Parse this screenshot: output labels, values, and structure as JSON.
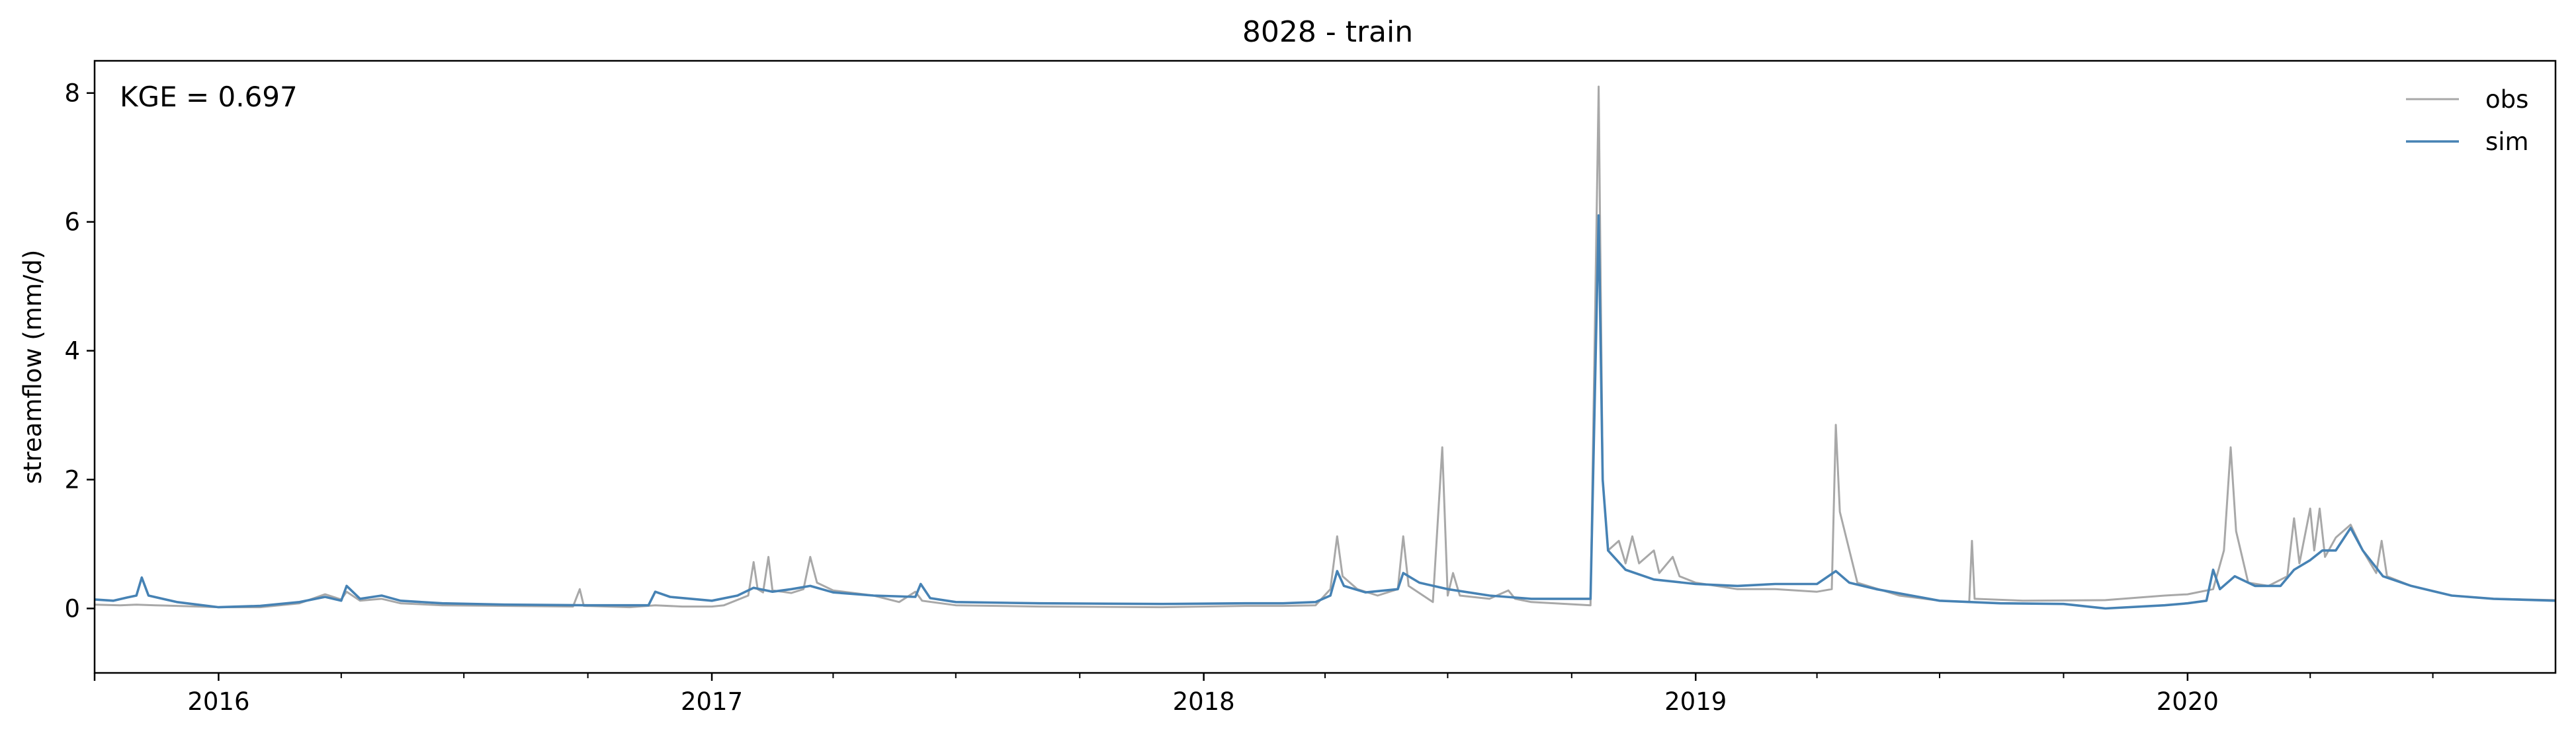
{
  "chart_data": {
    "type": "line",
    "title": "8028 - train",
    "xlabel": "",
    "ylabel": "streamflow (mm/d)",
    "annotation": "KGE = 0.697",
    "x_range": [
      "2015-10-01",
      "2020-09-30"
    ],
    "ylim": [
      -1.0,
      8.5
    ],
    "x_tick_labels": [
      {
        "date": "2016-01-01",
        "label": "2016"
      },
      {
        "date": "2017-01-01",
        "label": "2017"
      },
      {
        "date": "2018-01-01",
        "label": "2018"
      },
      {
        "date": "2019-01-01",
        "label": "2019"
      },
      {
        "date": "2020-01-01",
        "label": "2020"
      }
    ],
    "y_ticks": [
      0,
      2,
      4,
      6,
      8
    ],
    "grid": false,
    "legend_position": "top-right",
    "series": [
      {
        "name": "obs",
        "color": "#a8a8a8",
        "points": [
          [
            "2015-10-01",
            0.06
          ],
          [
            "2015-10-20",
            0.05
          ],
          [
            "2015-11-01",
            0.06
          ],
          [
            "2015-11-15",
            0.05
          ],
          [
            "2015-12-01",
            0.04
          ],
          [
            "2016-01-01",
            0.02
          ],
          [
            "2016-02-01",
            0.02
          ],
          [
            "2016-03-01",
            0.08
          ],
          [
            "2016-03-20",
            0.22
          ],
          [
            "2016-04-01",
            0.14
          ],
          [
            "2016-04-05",
            0.26
          ],
          [
            "2016-04-15",
            0.12
          ],
          [
            "2016-05-01",
            0.15
          ],
          [
            "2016-05-15",
            0.08
          ],
          [
            "2016-06-15",
            0.05
          ],
          [
            "2016-08-01",
            0.04
          ],
          [
            "2016-09-20",
            0.03
          ],
          [
            "2016-09-25",
            0.3
          ],
          [
            "2016-09-28",
            0.04
          ],
          [
            "2016-11-01",
            0.02
          ],
          [
            "2016-11-20",
            0.05
          ],
          [
            "2016-12-10",
            0.03
          ],
          [
            "2017-01-01",
            0.03
          ],
          [
            "2017-01-10",
            0.05
          ],
          [
            "2017-01-28",
            0.2
          ],
          [
            "2017-02-01",
            0.72
          ],
          [
            "2017-02-04",
            0.3
          ],
          [
            "2017-02-08",
            0.25
          ],
          [
            "2017-02-12",
            0.8
          ],
          [
            "2017-02-15",
            0.28
          ],
          [
            "2017-03-01",
            0.24
          ],
          [
            "2017-03-10",
            0.3
          ],
          [
            "2017-03-15",
            0.8
          ],
          [
            "2017-03-20",
            0.4
          ],
          [
            "2017-04-01",
            0.28
          ],
          [
            "2017-05-01",
            0.2
          ],
          [
            "2017-05-20",
            0.1
          ],
          [
            "2017-06-01",
            0.26
          ],
          [
            "2017-06-06",
            0.12
          ],
          [
            "2017-07-01",
            0.05
          ],
          [
            "2017-09-01",
            0.03
          ],
          [
            "2017-12-01",
            0.02
          ],
          [
            "2018-02-01",
            0.04
          ],
          [
            "2018-03-01",
            0.04
          ],
          [
            "2018-03-25",
            0.05
          ],
          [
            "2018-04-05",
            0.3
          ],
          [
            "2018-04-10",
            1.12
          ],
          [
            "2018-04-14",
            0.5
          ],
          [
            "2018-04-25",
            0.3
          ],
          [
            "2018-05-10",
            0.2
          ],
          [
            "2018-05-25",
            0.3
          ],
          [
            "2018-05-29",
            1.12
          ],
          [
            "2018-06-02",
            0.35
          ],
          [
            "2018-06-20",
            0.1
          ],
          [
            "2018-06-27",
            2.5
          ],
          [
            "2018-07-01",
            0.2
          ],
          [
            "2018-07-05",
            0.55
          ],
          [
            "2018-07-10",
            0.2
          ],
          [
            "2018-08-01",
            0.15
          ],
          [
            "2018-08-15",
            0.28
          ],
          [
            "2018-08-20",
            0.15
          ],
          [
            "2018-09-01",
            0.1
          ],
          [
            "2018-10-15",
            0.05
          ],
          [
            "2018-10-21",
            8.1
          ],
          [
            "2018-10-24",
            2.0
          ],
          [
            "2018-10-28",
            0.9
          ],
          [
            "2018-11-05",
            1.05
          ],
          [
            "2018-11-10",
            0.7
          ],
          [
            "2018-11-15",
            1.12
          ],
          [
            "2018-11-20",
            0.7
          ],
          [
            "2018-12-01",
            0.9
          ],
          [
            "2018-12-05",
            0.55
          ],
          [
            "2018-12-15",
            0.8
          ],
          [
            "2018-12-20",
            0.5
          ],
          [
            "2019-01-01",
            0.4
          ],
          [
            "2019-02-01",
            0.3
          ],
          [
            "2019-03-01",
            0.3
          ],
          [
            "2019-04-01",
            0.26
          ],
          [
            "2019-04-12",
            0.3
          ],
          [
            "2019-04-15",
            2.85
          ],
          [
            "2019-04-18",
            1.5
          ],
          [
            "2019-05-01",
            0.4
          ],
          [
            "2019-06-01",
            0.2
          ],
          [
            "2019-07-01",
            0.12
          ],
          [
            "2019-07-23",
            0.1
          ],
          [
            "2019-07-25",
            1.05
          ],
          [
            "2019-07-27",
            0.15
          ],
          [
            "2019-09-01",
            0.12
          ],
          [
            "2019-11-01",
            0.13
          ],
          [
            "2019-12-15",
            0.2
          ],
          [
            "2020-01-01",
            0.22
          ],
          [
            "2020-01-20",
            0.3
          ],
          [
            "2020-01-28",
            0.9
          ],
          [
            "2020-02-02",
            2.5
          ],
          [
            "2020-02-06",
            1.2
          ],
          [
            "2020-02-15",
            0.4
          ],
          [
            "2020-03-01",
            0.35
          ],
          [
            "2020-03-15",
            0.5
          ],
          [
            "2020-03-20",
            1.4
          ],
          [
            "2020-03-24",
            0.7
          ],
          [
            "2020-04-01",
            1.55
          ],
          [
            "2020-04-04",
            0.9
          ],
          [
            "2020-04-08",
            1.55
          ],
          [
            "2020-04-12",
            0.8
          ],
          [
            "2020-04-20",
            1.1
          ],
          [
            "2020-05-01",
            1.3
          ],
          [
            "2020-05-10",
            0.9
          ],
          [
            "2020-05-20",
            0.55
          ],
          [
            "2020-05-24",
            1.05
          ],
          [
            "2020-05-28",
            0.5
          ],
          [
            "2020-06-15",
            0.35
          ],
          [
            "2020-07-15",
            0.2
          ],
          [
            "2020-08-15",
            0.15
          ],
          [
            "2020-09-30",
            0.13
          ]
        ]
      },
      {
        "name": "sim",
        "color": "#4682b4",
        "points": [
          [
            "2015-10-01",
            0.14
          ],
          [
            "2015-10-15",
            0.12
          ],
          [
            "2015-10-25",
            0.17
          ],
          [
            "2015-11-01",
            0.2
          ],
          [
            "2015-11-05",
            0.48
          ],
          [
            "2015-11-10",
            0.2
          ],
          [
            "2015-12-01",
            0.1
          ],
          [
            "2016-01-01",
            0.02
          ],
          [
            "2016-02-01",
            0.04
          ],
          [
            "2016-03-01",
            0.1
          ],
          [
            "2016-03-20",
            0.18
          ],
          [
            "2016-04-01",
            0.12
          ],
          [
            "2016-04-05",
            0.35
          ],
          [
            "2016-04-15",
            0.15
          ],
          [
            "2016-05-01",
            0.2
          ],
          [
            "2016-05-15",
            0.12
          ],
          [
            "2016-06-15",
            0.08
          ],
          [
            "2016-08-01",
            0.06
          ],
          [
            "2016-10-01",
            0.05
          ],
          [
            "2016-11-15",
            0.05
          ],
          [
            "2016-11-20",
            0.26
          ],
          [
            "2016-12-01",
            0.18
          ],
          [
            "2017-01-01",
            0.12
          ],
          [
            "2017-01-20",
            0.2
          ],
          [
            "2017-02-01",
            0.32
          ],
          [
            "2017-02-15",
            0.26
          ],
          [
            "2017-03-01",
            0.3
          ],
          [
            "2017-03-15",
            0.35
          ],
          [
            "2017-04-01",
            0.25
          ],
          [
            "2017-05-01",
            0.2
          ],
          [
            "2017-06-01",
            0.18
          ],
          [
            "2017-06-05",
            0.38
          ],
          [
            "2017-06-12",
            0.16
          ],
          [
            "2017-07-01",
            0.1
          ],
          [
            "2017-09-01",
            0.08
          ],
          [
            "2017-12-01",
            0.07
          ],
          [
            "2018-02-01",
            0.08
          ],
          [
            "2018-03-01",
            0.08
          ],
          [
            "2018-03-25",
            0.1
          ],
          [
            "2018-04-05",
            0.2
          ],
          [
            "2018-04-10",
            0.58
          ],
          [
            "2018-04-15",
            0.35
          ],
          [
            "2018-05-01",
            0.25
          ],
          [
            "2018-05-25",
            0.3
          ],
          [
            "2018-05-29",
            0.55
          ],
          [
            "2018-06-10",
            0.4
          ],
          [
            "2018-07-01",
            0.3
          ],
          [
            "2018-08-01",
            0.2
          ],
          [
            "2018-09-01",
            0.15
          ],
          [
            "2018-10-15",
            0.15
          ],
          [
            "2018-10-21",
            6.1
          ],
          [
            "2018-10-24",
            2.0
          ],
          [
            "2018-10-28",
            0.9
          ],
          [
            "2018-11-10",
            0.6
          ],
          [
            "2018-12-01",
            0.45
          ],
          [
            "2019-01-01",
            0.38
          ],
          [
            "2019-02-01",
            0.35
          ],
          [
            "2019-03-01",
            0.38
          ],
          [
            "2019-04-01",
            0.38
          ],
          [
            "2019-04-15",
            0.58
          ],
          [
            "2019-04-25",
            0.4
          ],
          [
            "2019-05-15",
            0.3
          ],
          [
            "2019-07-01",
            0.12
          ],
          [
            "2019-08-15",
            0.08
          ],
          [
            "2019-10-01",
            0.07
          ],
          [
            "2019-11-01",
            0.0
          ],
          [
            "2019-12-15",
            0.05
          ],
          [
            "2020-01-01",
            0.08
          ],
          [
            "2020-01-15",
            0.12
          ],
          [
            "2020-01-20",
            0.6
          ],
          [
            "2020-01-25",
            0.3
          ],
          [
            "2020-02-05",
            0.5
          ],
          [
            "2020-02-20",
            0.35
          ],
          [
            "2020-03-10",
            0.35
          ],
          [
            "2020-03-20",
            0.6
          ],
          [
            "2020-04-01",
            0.75
          ],
          [
            "2020-04-10",
            0.9
          ],
          [
            "2020-04-20",
            0.9
          ],
          [
            "2020-05-01",
            1.25
          ],
          [
            "2020-05-10",
            0.9
          ],
          [
            "2020-05-25",
            0.5
          ],
          [
            "2020-06-15",
            0.35
          ],
          [
            "2020-07-15",
            0.2
          ],
          [
            "2020-08-15",
            0.15
          ],
          [
            "2020-09-30",
            0.12
          ]
        ]
      }
    ]
  }
}
